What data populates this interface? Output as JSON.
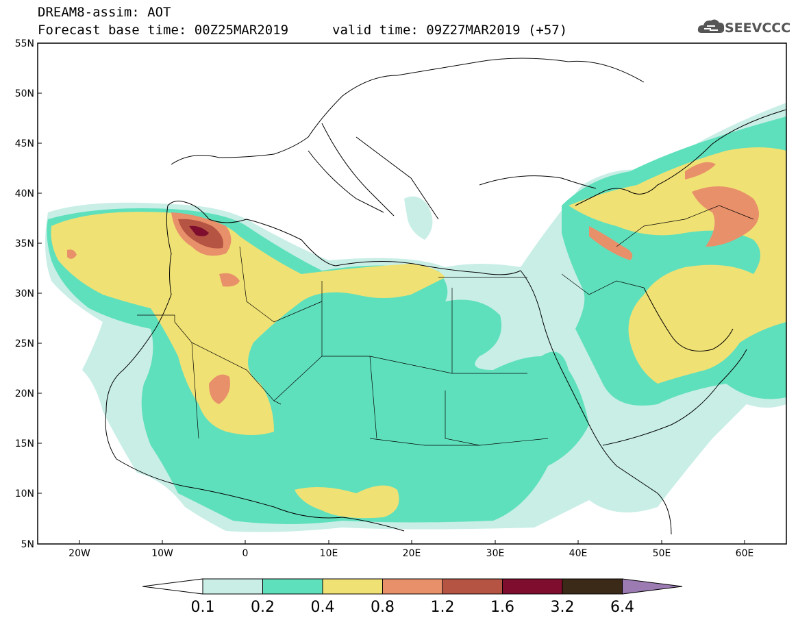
{
  "header": {
    "line1": "DREAM8-assim: AOT",
    "line2": "Forecast base time: 00Z25MAR2019",
    "valid": "valid time: 09Z27MAR2019 (+57)",
    "logo_text": "SEEVCCC"
  },
  "map": {
    "lat_labels": [
      "55N",
      "50N",
      "45N",
      "40N",
      "35N",
      "30N",
      "25N",
      "20N",
      "15N",
      "10N",
      "5N"
    ],
    "lon_labels": [
      "20W",
      "10W",
      "0",
      "10E",
      "20E",
      "30E",
      "40E",
      "50E",
      "60E"
    ]
  },
  "colorbar": {
    "levels": [
      "0.1",
      "0.2",
      "0.4",
      "0.8",
      "1.2",
      "1.6",
      "3.2",
      "6.4"
    ],
    "colors": [
      "#c8eee6",
      "#5fe0bc",
      "#f0e174",
      "#e8906a",
      "#b65444",
      "#7e0d2e",
      "#3b2a18",
      "#9b7bb2"
    ],
    "under_color": "#ffffff",
    "over_color": "#9b7bb2"
  },
  "colors": {
    "c1": "#c8eee6",
    "c2": "#5fe0bc",
    "c3": "#f0e174",
    "c4": "#e8906a",
    "c5": "#b65444",
    "c6": "#7e0d2e"
  }
}
